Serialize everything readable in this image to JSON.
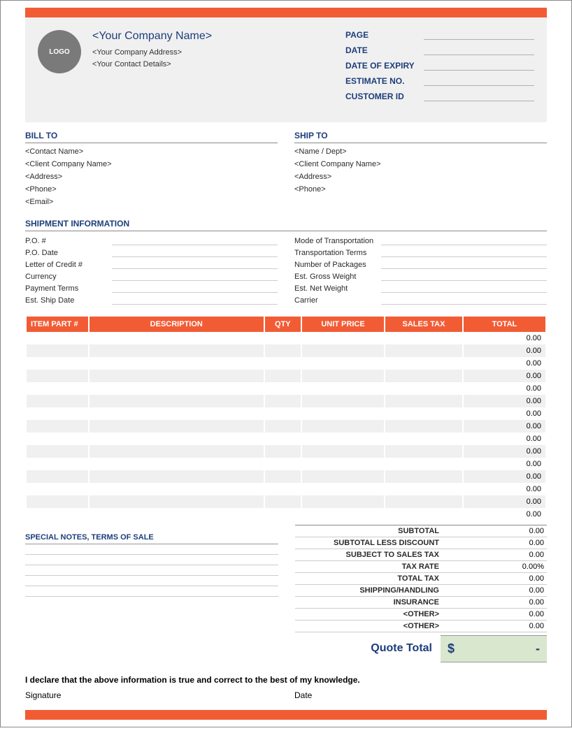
{
  "colors": {
    "accent": "#f25c35",
    "label": "#1d3e7a",
    "total_bg": "#d8e7ce"
  },
  "header": {
    "logo_text": "LOGO",
    "company_name": "<Your Company Name>",
    "company_address": "<Your Company Address>",
    "contact_details": "<Your Contact Details>",
    "meta": [
      {
        "label": "PAGE",
        "value": ""
      },
      {
        "label": "DATE",
        "value": ""
      },
      {
        "label": "DATE OF EXPIRY",
        "value": ""
      },
      {
        "label": "ESTIMATE NO.",
        "value": ""
      },
      {
        "label": "CUSTOMER ID",
        "value": ""
      }
    ]
  },
  "bill_to": {
    "title": "BILL TO",
    "lines": [
      "<Contact Name>",
      "<Client Company Name>",
      "<Address>",
      "<Phone>",
      "<Email>"
    ]
  },
  "ship_to": {
    "title": "SHIP TO",
    "lines": [
      "<Name / Dept>",
      "<Client Company Name>",
      "<Address>",
      "<Phone>"
    ]
  },
  "shipment": {
    "title": "SHIPMENT INFORMATION",
    "left": [
      {
        "label": "P.O. #",
        "value": ""
      },
      {
        "label": "P.O. Date",
        "value": ""
      },
      {
        "label": "Letter of Credit #",
        "value": ""
      },
      {
        "label": "Currency",
        "value": ""
      },
      {
        "label": "Payment Terms",
        "value": ""
      },
      {
        "label": "Est. Ship Date",
        "value": ""
      }
    ],
    "right": [
      {
        "label": "Mode of Transportation",
        "value": ""
      },
      {
        "label": "Transportation Terms",
        "value": ""
      },
      {
        "label": "Number of Packages",
        "value": ""
      },
      {
        "label": "Est. Gross Weight",
        "value": ""
      },
      {
        "label": "Est. Net Weight",
        "value": ""
      },
      {
        "label": "Carrier",
        "value": ""
      }
    ]
  },
  "items": {
    "columns": [
      "ITEM PART #",
      "DESCRIPTION",
      "QTY",
      "UNIT PRICE",
      "SALES TAX",
      "TOTAL"
    ],
    "col_widths": [
      "12%",
      "34%",
      "7%",
      "16%",
      "15%",
      "16%"
    ],
    "rows": [
      {
        "part": "",
        "desc": "",
        "qty": "",
        "price": "",
        "tax": "",
        "total": "0.00"
      },
      {
        "part": "",
        "desc": "",
        "qty": "",
        "price": "",
        "tax": "",
        "total": "0.00"
      },
      {
        "part": "",
        "desc": "",
        "qty": "",
        "price": "",
        "tax": "",
        "total": "0.00"
      },
      {
        "part": "",
        "desc": "",
        "qty": "",
        "price": "",
        "tax": "",
        "total": "0.00"
      },
      {
        "part": "",
        "desc": "",
        "qty": "",
        "price": "",
        "tax": "",
        "total": "0.00"
      },
      {
        "part": "",
        "desc": "",
        "qty": "",
        "price": "",
        "tax": "",
        "total": "0.00"
      },
      {
        "part": "",
        "desc": "",
        "qty": "",
        "price": "",
        "tax": "",
        "total": "0.00"
      },
      {
        "part": "",
        "desc": "",
        "qty": "",
        "price": "",
        "tax": "",
        "total": "0.00"
      },
      {
        "part": "",
        "desc": "",
        "qty": "",
        "price": "",
        "tax": "",
        "total": "0.00"
      },
      {
        "part": "",
        "desc": "",
        "qty": "",
        "price": "",
        "tax": "",
        "total": "0.00"
      },
      {
        "part": "",
        "desc": "",
        "qty": "",
        "price": "",
        "tax": "",
        "total": "0.00"
      },
      {
        "part": "",
        "desc": "",
        "qty": "",
        "price": "",
        "tax": "",
        "total": "0.00"
      },
      {
        "part": "",
        "desc": "",
        "qty": "",
        "price": "",
        "tax": "",
        "total": "0.00"
      },
      {
        "part": "",
        "desc": "",
        "qty": "",
        "price": "",
        "tax": "",
        "total": "0.00"
      },
      {
        "part": "",
        "desc": "",
        "qty": "",
        "price": "",
        "tax": "",
        "total": "0.00"
      }
    ]
  },
  "notes_title": "SPECIAL NOTES, TERMS OF SALE",
  "notes_line_count": 5,
  "totals": [
    {
      "label": "SUBTOTAL",
      "value": "0.00"
    },
    {
      "label": "SUBTOTAL LESS DISCOUNT",
      "value": "0.00"
    },
    {
      "label": "SUBJECT TO SALES TAX",
      "value": "0.00"
    },
    {
      "label": "TAX RATE",
      "value": "0.00%"
    },
    {
      "label": "TOTAL TAX",
      "value": "0.00"
    },
    {
      "label": "SHIPPING/HANDLING",
      "value": "0.00"
    },
    {
      "label": "INSURANCE",
      "value": "0.00"
    },
    {
      "label": "<OTHER>",
      "value": "0.00"
    },
    {
      "label": "<OTHER>",
      "value": "0.00"
    }
  ],
  "quote_total": {
    "label": "Quote Total",
    "currency": "$",
    "value": "-"
  },
  "declaration": "I declare that the above information is true and correct to the best of my knowledge.",
  "signature_label": "Signature",
  "date_label": "Date"
}
